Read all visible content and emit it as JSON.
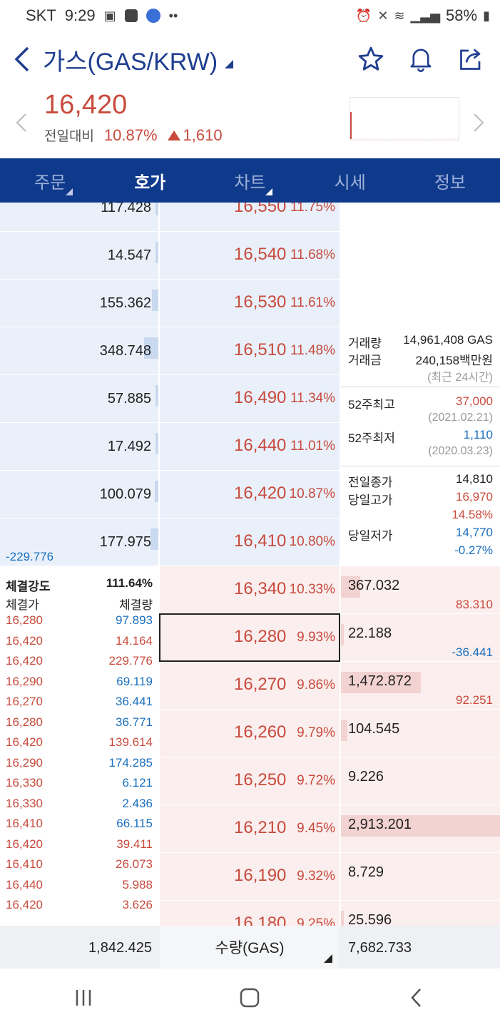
{
  "status_bar": {
    "carrier": "SKT",
    "time": "9:29",
    "battery": "58%"
  },
  "header": {
    "title": "가스(GAS/KRW)"
  },
  "price_header": {
    "price": "16,420",
    "change_label": "전일대비",
    "change_pct": "10.87%",
    "change_abs": "1,610"
  },
  "tabs": [
    {
      "label": "주문"
    },
    {
      "label": "호가"
    },
    {
      "label": "차트"
    },
    {
      "label": "시세"
    },
    {
      "label": "정보"
    }
  ],
  "asks": [
    {
      "qty": "117.428",
      "price": "16,550",
      "pct": "11.75%",
      "bar": 0.02
    },
    {
      "qty": "14.547",
      "price": "16,540",
      "pct": "11.68%",
      "bar": 0.01
    },
    {
      "qty": "155.362",
      "price": "16,530",
      "pct": "11.61%",
      "bar": 0.05
    },
    {
      "qty": "348.748",
      "price": "16,510",
      "pct": "11.48%",
      "bar": 0.11
    },
    {
      "qty": "57.885",
      "price": "16,490",
      "pct": "11.34%",
      "bar": 0.02
    },
    {
      "qty": "17.492",
      "price": "16,440",
      "pct": "11.01%",
      "bar": 0.01
    },
    {
      "qty": "100.079",
      "price": "16,420",
      "pct": "10.87%",
      "bar": 0.03
    },
    {
      "qty": "177.975",
      "price": "16,410",
      "pct": "10.80%",
      "bar": 0.06,
      "diff": "-229.776"
    }
  ],
  "bids": [
    {
      "price": "16,340",
      "pct": "10.33%",
      "qty": "367.032",
      "diff": "83.310",
      "diff_dir": "up",
      "bar": 0.12
    },
    {
      "price": "16,280",
      "pct": "9.93%",
      "qty": "22.188",
      "diff": "-36.441",
      "diff_dir": "down",
      "bar": 0.01
    },
    {
      "price": "16,270",
      "pct": "9.86%",
      "qty": "1,472.872",
      "diff": "92.251",
      "diff_dir": "up",
      "bar": 0.5
    },
    {
      "price": "16,260",
      "pct": "9.79%",
      "qty": "104.545",
      "diff": "",
      "diff_dir": "",
      "bar": 0.04
    },
    {
      "price": "16,250",
      "pct": "9.72%",
      "qty": "9.226",
      "diff": "",
      "diff_dir": "",
      "bar": 0.0
    },
    {
      "price": "16,210",
      "pct": "9.45%",
      "qty": "2,913.201",
      "diff": "",
      "diff_dir": "",
      "bar": 1.0
    },
    {
      "price": "16,190",
      "pct": "9.32%",
      "qty": "8.729",
      "diff": "",
      "diff_dir": "",
      "bar": 0.0
    },
    {
      "price": "16,180",
      "pct": "9.25%",
      "qty": "25.596",
      "diff": "",
      "diff_dir": "",
      "bar": 0.01
    }
  ],
  "current_price_row": 1,
  "market_info": {
    "volume_label": "거래량",
    "volume": "14,961,408 GAS",
    "amount_label": "거래금",
    "amount": "240,158백만원",
    "period_note": "(최근 24시간)",
    "high52_label": "52주최고",
    "high52": "37,000",
    "high52_date": "(2021.02.21)",
    "low52_label": "52주최저",
    "low52": "1,110",
    "low52_date": "(2020.03.23)",
    "prev_close_label": "전일종가",
    "prev_close": "14,810",
    "day_high_label": "당일고가",
    "day_high": "16,970",
    "day_high_pct": "14.58%",
    "day_low_label": "당일저가",
    "day_low": "14,770",
    "day_low_pct": "-0.27%"
  },
  "trades": {
    "strength_label": "체결강도",
    "strength": "111.64%",
    "price_col": "체결가",
    "qty_col": "체결량",
    "rows": [
      {
        "price": "16,280",
        "qty": "97.893",
        "dir": "down"
      },
      {
        "price": "16,420",
        "qty": "14.164",
        "dir": "up"
      },
      {
        "price": "16,420",
        "qty": "229.776",
        "dir": "up"
      },
      {
        "price": "16,290",
        "qty": "69.119",
        "dir": "down"
      },
      {
        "price": "16,270",
        "qty": "36.441",
        "dir": "down"
      },
      {
        "price": "16,280",
        "qty": "36.771",
        "dir": "down"
      },
      {
        "price": "16,420",
        "qty": "139.614",
        "dir": "up"
      },
      {
        "price": "16,290",
        "qty": "174.285",
        "dir": "down"
      },
      {
        "price": "16,330",
        "qty": "6.121",
        "dir": "down"
      },
      {
        "price": "16,330",
        "qty": "2.436",
        "dir": "down"
      },
      {
        "price": "16,410",
        "qty": "66.115",
        "dir": "down"
      },
      {
        "price": "16,420",
        "qty": "39.411",
        "dir": "up"
      },
      {
        "price": "16,410",
        "qty": "26.073",
        "dir": "up"
      },
      {
        "price": "16,440",
        "qty": "5.988",
        "dir": "up"
      },
      {
        "price": "16,420",
        "qty": "3.626",
        "dir": "up"
      }
    ]
  },
  "footer": {
    "ask_total": "1,842.425",
    "unit_label": "수량(GAS)",
    "bid_total": "7,682.733"
  },
  "colors": {
    "up": "#c84b3d",
    "down": "#1a6fbd",
    "tab_bg": "#0f3a8c",
    "title": "#1f3e8f"
  },
  "icons": [
    "back-icon",
    "star-icon",
    "bell-icon",
    "share-icon",
    "recent-apps-icon",
    "home-icon",
    "nav-back-icon"
  ]
}
